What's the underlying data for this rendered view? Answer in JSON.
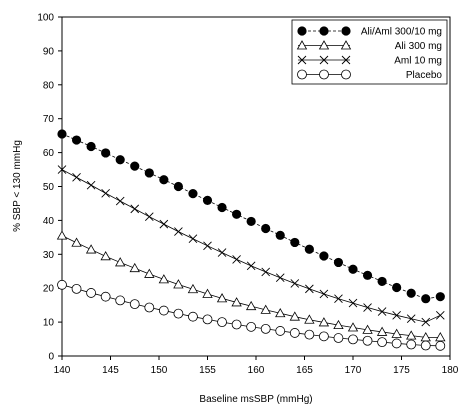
{
  "chart_data": {
    "type": "line",
    "title": "",
    "xlabel": "Baseline msSBP (mmHg)",
    "ylabel": "% SBP  <  130 mmHg",
    "xlim": [
      140,
      180
    ],
    "ylim": [
      0,
      100
    ],
    "xticks": [
      140,
      145,
      150,
      155,
      160,
      165,
      170,
      175,
      180
    ],
    "yticks": [
      0,
      10,
      20,
      30,
      40,
      50,
      60,
      70,
      80,
      90,
      100
    ],
    "grid": false,
    "legend_position": "top-right",
    "x": [
      140,
      141.5,
      143,
      144.5,
      146,
      147.5,
      149,
      150.5,
      152,
      153.5,
      155,
      156.5,
      158,
      159.5,
      161,
      162.5,
      164,
      165.5,
      167,
      168.5,
      170,
      171.5,
      173,
      174.5,
      176,
      177.5,
      179
    ],
    "series": [
      {
        "name": "Ali/Aml 300/10 mg",
        "marker": "filled-circle",
        "values": [
          65.5,
          63.7,
          61.8,
          59.9,
          57.9,
          56.0,
          54.0,
          52.0,
          50.0,
          47.9,
          45.9,
          43.8,
          41.8,
          39.7,
          37.6,
          35.6,
          33.5,
          31.5,
          29.5,
          27.6,
          25.6,
          23.8,
          22.0,
          20.2,
          18.5,
          16.9,
          17.5
        ]
      },
      {
        "name": "Ali 300  mg",
        "marker": "open-triangle",
        "values": [
          35.5,
          33.4,
          31.4,
          29.4,
          27.6,
          25.9,
          24.2,
          22.6,
          21.1,
          19.7,
          18.3,
          17.0,
          15.8,
          14.7,
          13.6,
          12.6,
          11.6,
          10.7,
          9.9,
          9.1,
          8.4,
          7.7,
          7.1,
          6.5,
          6.0,
          5.5,
          5.5
        ]
      },
      {
        "name": "Aml 10  mg",
        "marker": "x",
        "values": [
          55.0,
          52.7,
          50.4,
          48.0,
          45.7,
          43.4,
          41.1,
          38.9,
          36.7,
          34.6,
          32.5,
          30.5,
          28.5,
          26.6,
          24.8,
          23.1,
          21.4,
          19.8,
          18.3,
          16.9,
          15.6,
          14.3,
          13.1,
          12.0,
          11.0,
          10.0,
          12.0
        ]
      },
      {
        "name": "Placebo",
        "marker": "open-circle",
        "values": [
          21.0,
          19.8,
          18.6,
          17.5,
          16.4,
          15.3,
          14.3,
          13.4,
          12.5,
          11.6,
          10.8,
          10.0,
          9.3,
          8.6,
          8.0,
          7.4,
          6.8,
          6.3,
          5.8,
          5.3,
          4.9,
          4.5,
          4.1,
          3.7,
          3.4,
          3.1,
          3.0
        ]
      }
    ],
    "colors": {
      "line": "#000000"
    }
  }
}
